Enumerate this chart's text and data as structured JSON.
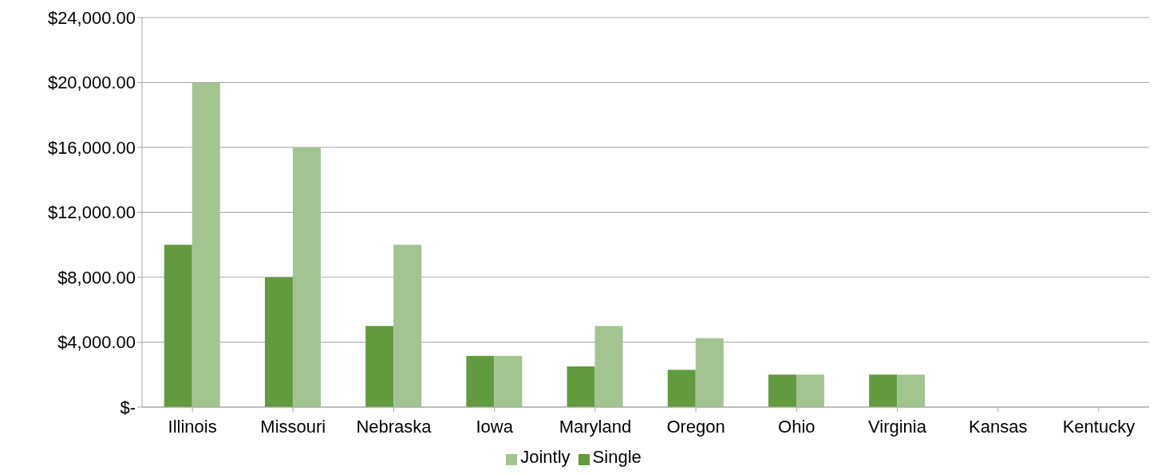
{
  "chart_data": {
    "type": "bar",
    "categories": [
      "Illinois",
      "Missouri",
      "Nebraska",
      "Iowa",
      "Maryland",
      "Oregon",
      "Ohio",
      "Virginia",
      "Kansas",
      "Kentucky"
    ],
    "series": [
      {
        "name": "Single",
        "color": "#629a3e",
        "values": [
          10000,
          8000,
          5000,
          3150,
          2500,
          2300,
          2000,
          2000,
          0,
          0
        ]
      },
      {
        "name": "Jointly",
        "color": "#a3c490",
        "values": [
          20000,
          16000,
          10000,
          3150,
          5000,
          4250,
          2000,
          2000,
          0,
          0
        ]
      }
    ],
    "ylim": [
      0,
      24000
    ],
    "yticks": [
      {
        "value": 0,
        "label": "$-"
      },
      {
        "value": 4000,
        "label": "$4,000.00"
      },
      {
        "value": 8000,
        "label": "$8,000.00"
      },
      {
        "value": 12000,
        "label": "$12,000.00"
      },
      {
        "value": 16000,
        "label": "$16,000.00"
      },
      {
        "value": 20000,
        "label": "$20,000.00"
      },
      {
        "value": 24000,
        "label": "$24,000.00"
      }
    ],
    "grid": "y",
    "legend": "bottom"
  }
}
